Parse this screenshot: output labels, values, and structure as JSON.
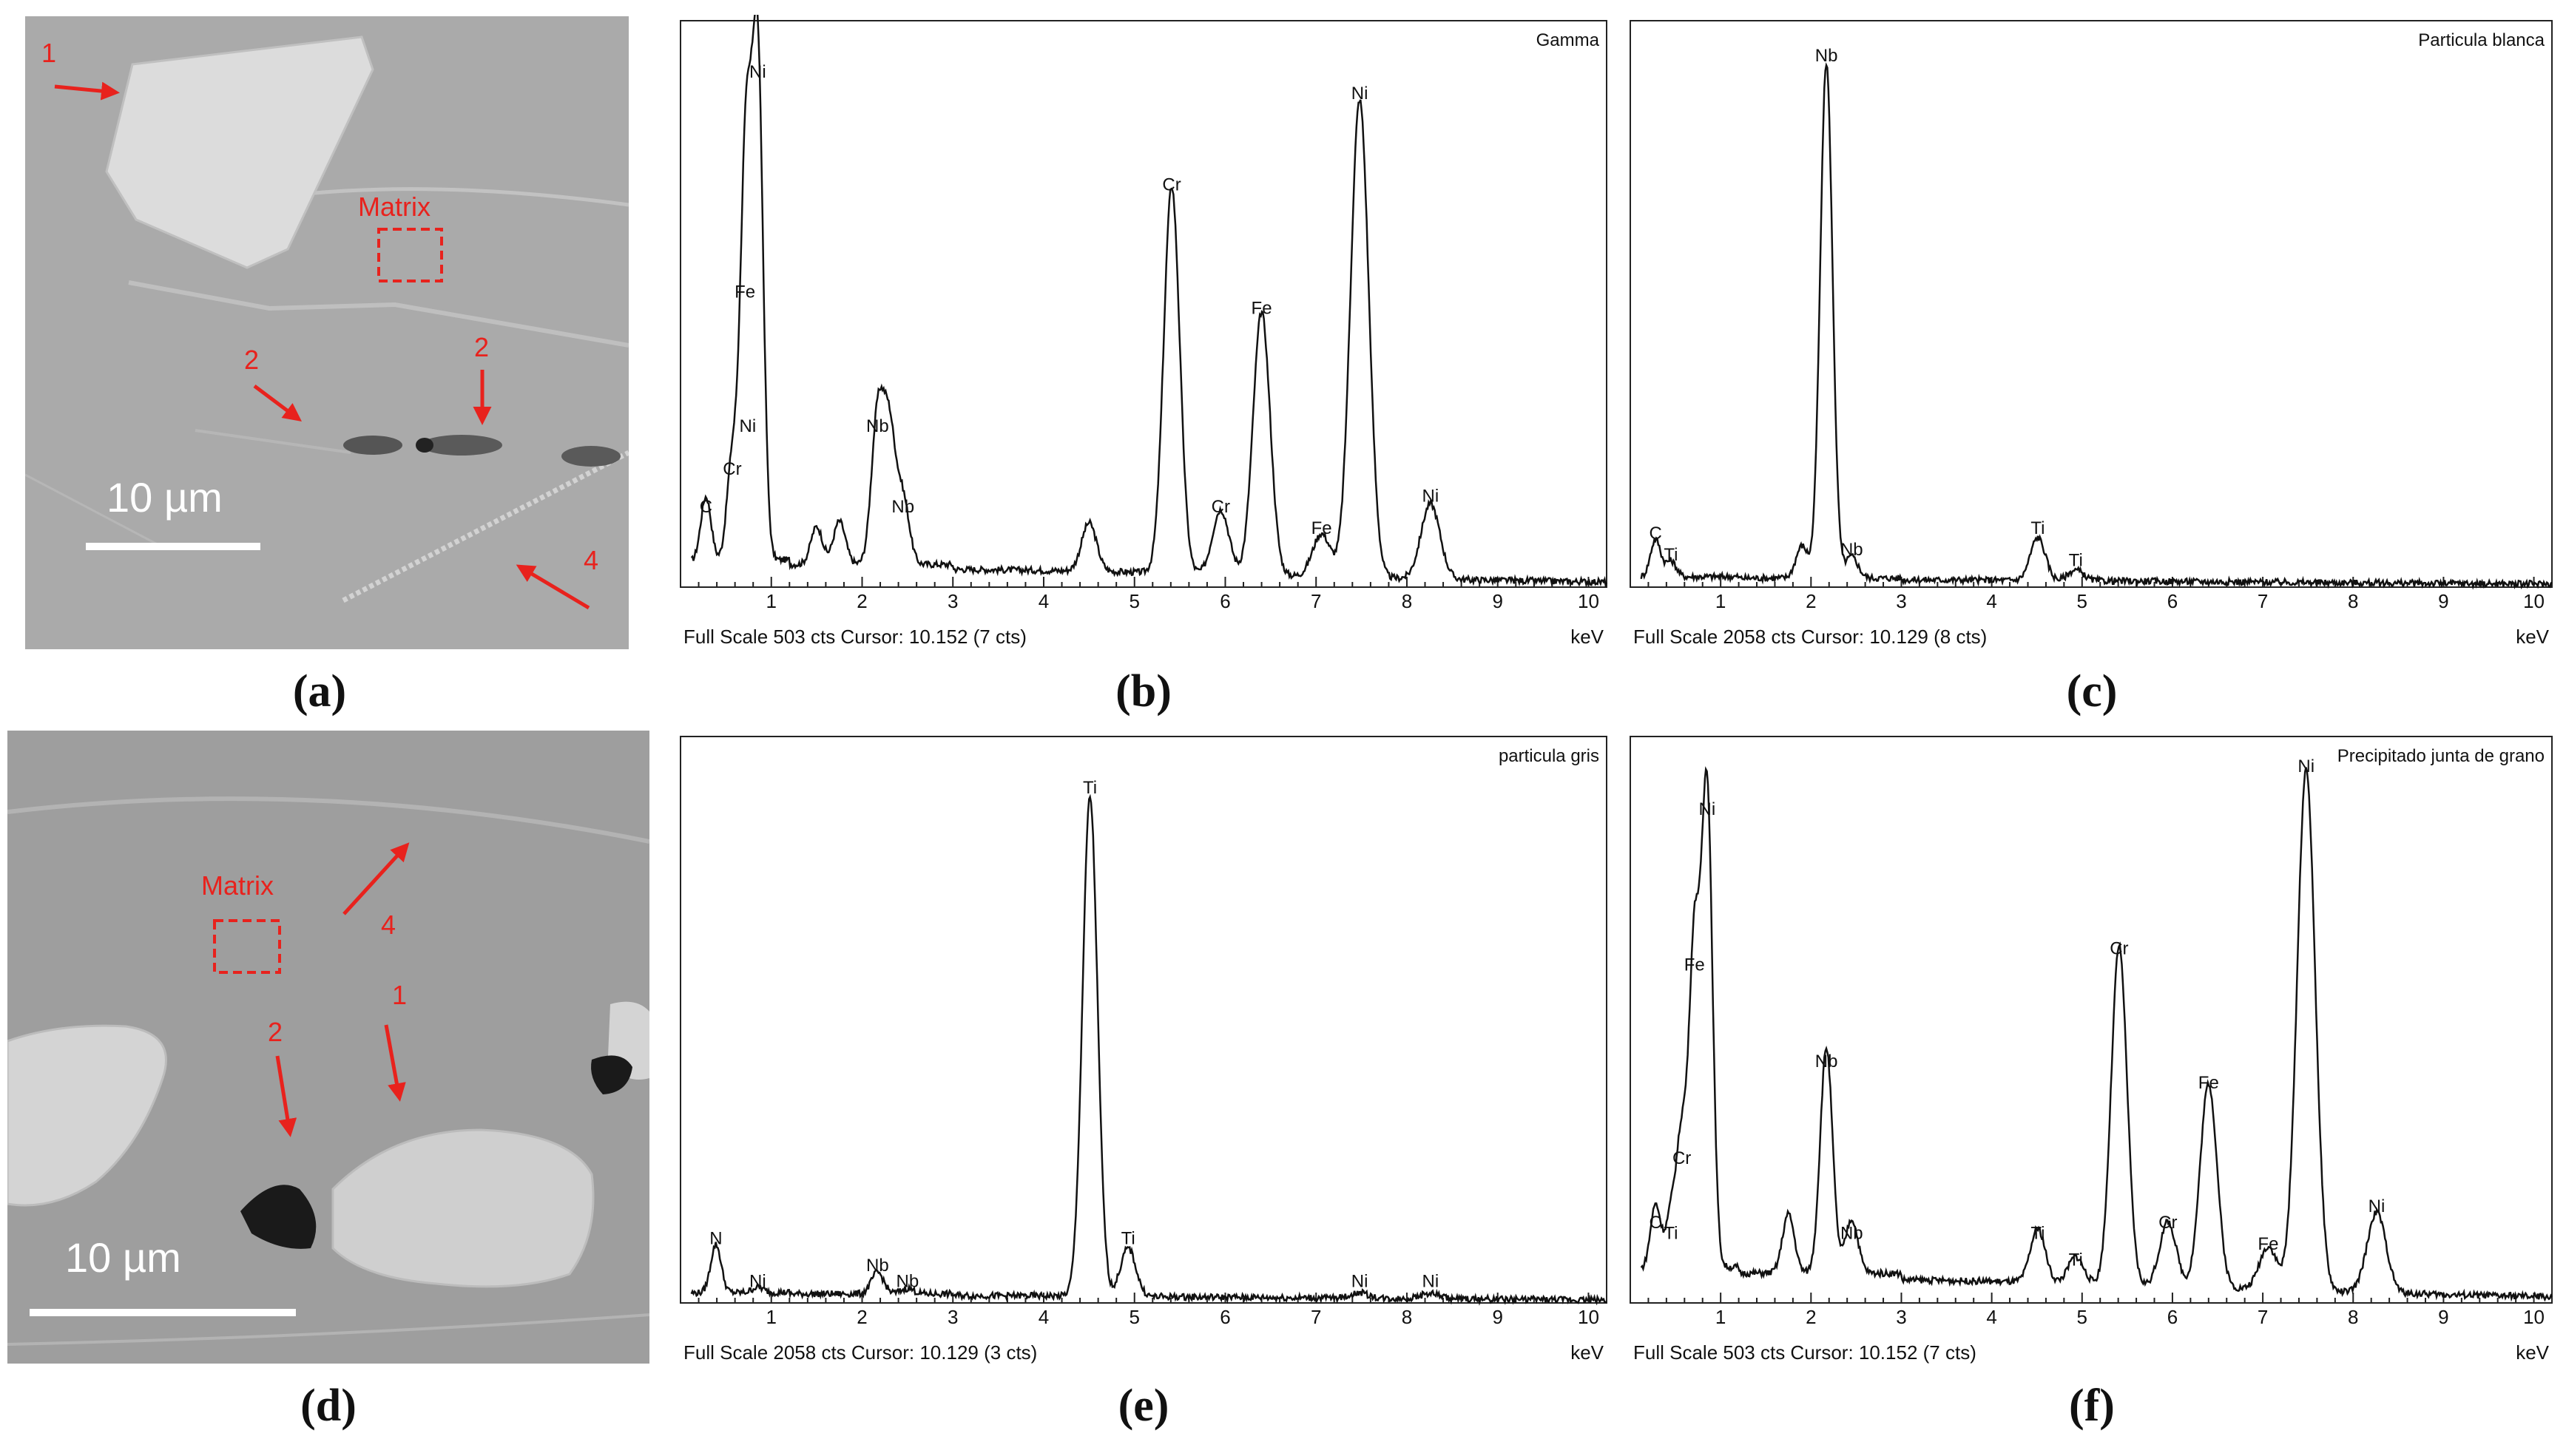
{
  "labels": [
    "(a)",
    "(b)",
    "(c)",
    "(d)",
    "(e)",
    "(f)"
  ],
  "sem_a": {
    "scale_bar": "10 µm",
    "matrix_label": "Matrix",
    "markers": [
      "1",
      "2",
      "2",
      "4"
    ],
    "colors": {
      "marker": "#e8221d",
      "bg": "#a8a8a8"
    }
  },
  "sem_d": {
    "scale_bar": "10 µm",
    "matrix_label": "Matrix",
    "markers": [
      "4",
      "2",
      "1"
    ],
    "colors": {
      "marker": "#e8221d",
      "bg": "#9c9c9c"
    }
  },
  "chart_data": [
    {
      "panel": "b",
      "type": "line",
      "title": "Gamma",
      "footer": "Full Scale 503 cts Cursor: 10.152  (7 cts)",
      "xlabel": "keV",
      "xlim": [
        0,
        10.2
      ],
      "xticks": [
        "1",
        "2",
        "3",
        "4",
        "5",
        "6",
        "7",
        "8",
        "9",
        "10"
      ],
      "baseline": 0.03,
      "peaks": [
        {
          "label": "C",
          "x": 0.28,
          "y": 0.12
        },
        {
          "label": "Cr",
          "x": 0.57,
          "y": 0.19
        },
        {
          "label": "Ni",
          "x": 0.74,
          "y": 0.27
        },
        {
          "label": "Fe",
          "x": 0.71,
          "y": 0.52
        },
        {
          "label": "Ni",
          "x": 0.85,
          "y": 0.93
        },
        {
          "label": "",
          "x": 1.5,
          "y": 0.07
        },
        {
          "label": "",
          "x": 1.75,
          "y": 0.08
        },
        {
          "label": "Nb",
          "x": 2.17,
          "y": 0.27
        },
        {
          "label": "",
          "x": 2.3,
          "y": 0.24
        },
        {
          "label": "Nb",
          "x": 2.45,
          "y": 0.12
        },
        {
          "label": "",
          "x": 4.5,
          "y": 0.09
        },
        {
          "label": "Cr",
          "x": 5.41,
          "y": 0.72
        },
        {
          "label": "Cr",
          "x": 5.95,
          "y": 0.12
        },
        {
          "label": "Fe",
          "x": 6.4,
          "y": 0.49
        },
        {
          "label": "Fe",
          "x": 7.06,
          "y": 0.08
        },
        {
          "label": "Ni",
          "x": 7.48,
          "y": 0.89
        },
        {
          "label": "Ni",
          "x": 8.26,
          "y": 0.14
        }
      ]
    },
    {
      "panel": "c",
      "type": "line",
      "title": "Particula blanca",
      "footer": "Full Scale 2058 cts Cursor: 10.129  (8 cts)",
      "xlabel": "keV",
      "xlim": [
        0,
        10.2
      ],
      "xticks": [
        "1",
        "2",
        "3",
        "4",
        "5",
        "6",
        "7",
        "8",
        "9",
        "10"
      ],
      "baseline": 0.01,
      "peaks": [
        {
          "label": "C",
          "x": 0.28,
          "y": 0.07
        },
        {
          "label": "Ti",
          "x": 0.45,
          "y": 0.03
        },
        {
          "label": "",
          "x": 1.9,
          "y": 0.06
        },
        {
          "label": "Nb",
          "x": 2.17,
          "y": 0.96
        },
        {
          "label": "Nb",
          "x": 2.45,
          "y": 0.04
        },
        {
          "label": "Ti",
          "x": 4.51,
          "y": 0.08
        },
        {
          "label": "Ti",
          "x": 4.93,
          "y": 0.02
        }
      ]
    },
    {
      "panel": "e",
      "type": "line",
      "title": "particula gris",
      "footer": "Full Scale 2058 cts Cursor: 10.129  (3 cts)",
      "xlabel": "keV",
      "xlim": [
        0,
        10.2
      ],
      "xticks": [
        "1",
        "2",
        "3",
        "4",
        "5",
        "6",
        "7",
        "8",
        "9",
        "10"
      ],
      "baseline": 0.01,
      "peaks": [
        {
          "label": "N",
          "x": 0.39,
          "y": 0.09
        },
        {
          "label": "Ni",
          "x": 0.85,
          "y": 0.01
        },
        {
          "label": "Nb",
          "x": 2.17,
          "y": 0.04
        },
        {
          "label": "Nb",
          "x": 2.5,
          "y": 0.01
        },
        {
          "label": "Ti",
          "x": 4.51,
          "y": 0.93
        },
        {
          "label": "Ti",
          "x": 4.93,
          "y": 0.09
        },
        {
          "label": "Ni",
          "x": 7.48,
          "y": 0.01
        },
        {
          "label": "Ni",
          "x": 8.26,
          "y": 0.01
        }
      ]
    },
    {
      "panel": "f",
      "type": "line",
      "title": "Precipitado junta de grano",
      "footer": "Full Scale 503 cts Cursor: 10.152  (7 cts)",
      "xlabel": "keV",
      "xlim": [
        0,
        10.2
      ],
      "xticks": [
        "1",
        "2",
        "3",
        "4",
        "5",
        "6",
        "7",
        "8",
        "9",
        "10"
      ],
      "baseline": 0.04,
      "peaks": [
        {
          "label": "C",
          "x": 0.28,
          "y": 0.12
        },
        {
          "label": "Ti",
          "x": 0.45,
          "y": 0.1
        },
        {
          "label": "Cr",
          "x": 0.57,
          "y": 0.24
        },
        {
          "label": "Fe",
          "x": 0.71,
          "y": 0.6
        },
        {
          "label": "Ni",
          "x": 0.85,
          "y": 0.89
        },
        {
          "label": "",
          "x": 1.75,
          "y": 0.11
        },
        {
          "label": "Nb",
          "x": 2.17,
          "y": 0.42
        },
        {
          "label": "Nb",
          "x": 2.45,
          "y": 0.1
        },
        {
          "label": "Ti",
          "x": 4.51,
          "y": 0.1
        },
        {
          "label": "Ti",
          "x": 4.93,
          "y": 0.05
        },
        {
          "label": "Cr",
          "x": 5.41,
          "y": 0.63
        },
        {
          "label": "Cr",
          "x": 5.95,
          "y": 0.12
        },
        {
          "label": "Fe",
          "x": 6.4,
          "y": 0.38
        },
        {
          "label": "Fe",
          "x": 7.06,
          "y": 0.08
        },
        {
          "label": "Ni",
          "x": 7.48,
          "y": 0.97
        },
        {
          "label": "Ni",
          "x": 8.26,
          "y": 0.15
        }
      ]
    }
  ]
}
